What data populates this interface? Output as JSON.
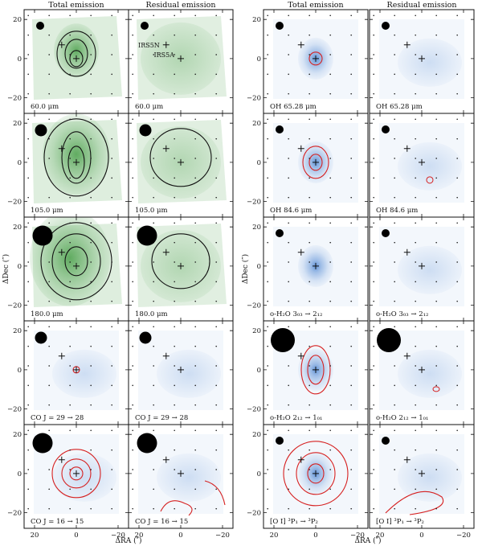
{
  "column_headers": [
    "Total emission",
    "Residual emission",
    "Total emission",
    "Residual emission"
  ],
  "axis_labels": {
    "x": "ΔRA (″)",
    "y": "ΔDec (″)"
  },
  "tick_labels": {
    "x": [
      "20",
      "0",
      "−20"
    ],
    "y": [
      "20",
      "0",
      "−20"
    ]
  },
  "source_labels": {
    "irs5n": "IRS5N",
    "irs5a": "IRS5A"
  },
  "panel_labels": [
    [
      "60.0 μm",
      "60.0 μm",
      "OH 65.28 μm",
      "OH 65.28 μm"
    ],
    [
      "105.0 μm",
      "105.0 μm",
      "OH 84.6 μm",
      "OH 84.6 μm"
    ],
    [
      "180.0 μm",
      "180.0 μm",
      "o-H₂O 3₀₃ → 2₁₂",
      "o-H₂O 3₀₃ → 2₁₂"
    ],
    [
      "CO J = 29 → 28",
      "CO J = 29 → 28",
      "o-H₂O 2₁₂ → 1₀₁",
      "o-H₂O 2₁₂ → 1₀₁"
    ],
    [
      "CO J = 16 → 15",
      "CO J = 16 → 15",
      "[O I] ³P₁ → ³P₂",
      "[O I] ³P₁ → ³P₂"
    ]
  ],
  "beam_sizes": [
    [
      1,
      1,
      1,
      1
    ],
    [
      1.5,
      1.5,
      1,
      1
    ],
    [
      2.5,
      2.5,
      1,
      1
    ],
    [
      1.5,
      1.5,
      3,
      3
    ],
    [
      2.5,
      2.5,
      1,
      1
    ]
  ],
  "colors": {
    "green_map": "#5aa85a",
    "blue_map": "#5b8fd6",
    "contour_black": "#111111",
    "contour_red": "#d62020"
  }
}
